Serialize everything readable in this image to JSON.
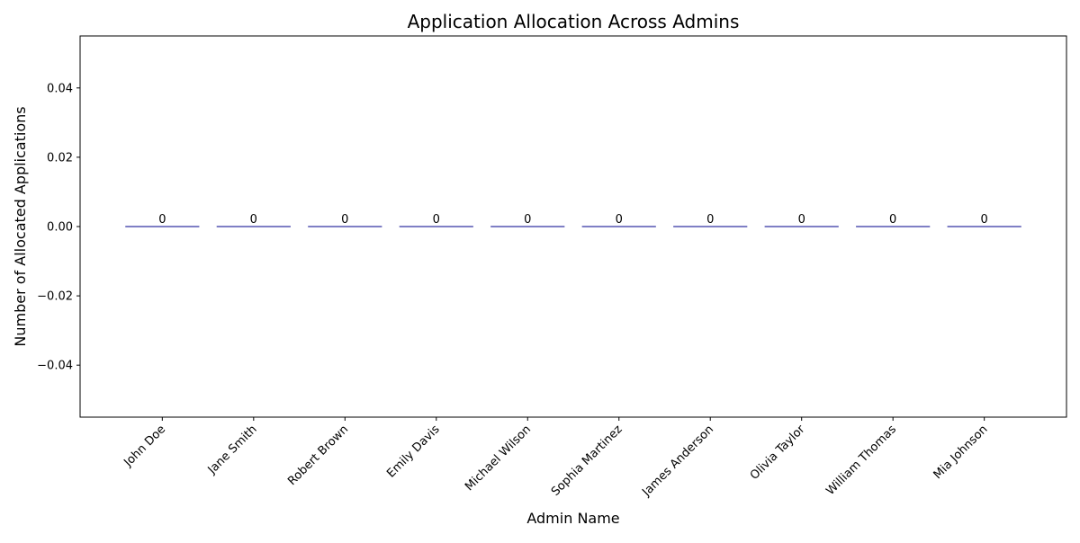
{
  "chart_data": {
    "type": "bar",
    "title": "Application Allocation Across Admins",
    "xlabel": "Admin Name",
    "ylabel": "Number of Allocated Applications",
    "categories": [
      "John Doe",
      "Jane Smith",
      "Robert Brown",
      "Emily Davis",
      "Michael Wilson",
      "Sophia Martinez",
      "James Anderson",
      "Olivia Taylor",
      "William Thomas",
      "Mia Johnson"
    ],
    "values": [
      0,
      0,
      0,
      0,
      0,
      0,
      0,
      0,
      0,
      0
    ],
    "data_labels": [
      "0",
      "0",
      "0",
      "0",
      "0",
      "0",
      "0",
      "0",
      "0",
      "0"
    ],
    "ylim": [
      -0.055,
      0.055
    ],
    "yticks": [
      -0.04,
      -0.02,
      0.0,
      0.02,
      0.04
    ],
    "ytick_labels": [
      "−0.04",
      "−0.02",
      "0.00",
      "0.02",
      "0.04"
    ],
    "grid": false,
    "legend": "none",
    "bar_color": "#87ceeb",
    "bar_edge_color": "#00008b"
  }
}
